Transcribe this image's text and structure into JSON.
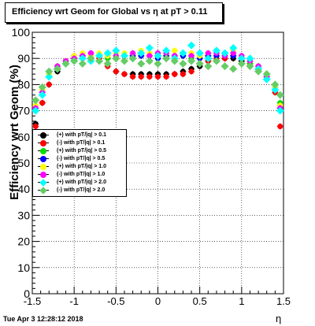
{
  "title": "Efficiency wrt Geom for Global vs  η at pT > 0.11",
  "datestamp": "Tue Apr  3 12:28:12 2018",
  "chart_data": {
    "type": "scatter",
    "xlabel": "η",
    "ylabel": "Efficiency wrt Geom (%)",
    "xlim": [
      -1.5,
      1.5
    ],
    "ylim": [
      0,
      100
    ],
    "xticks": [
      "-1.5",
      "-1",
      "-0.5",
      "0",
      "0.5",
      "1",
      "1.5"
    ],
    "xtick_values": [
      -1.5,
      -1,
      -0.5,
      0,
      0.5,
      1,
      1.5
    ],
    "yticks": [
      "0",
      "10",
      "20",
      "30",
      "40",
      "50",
      "60",
      "70",
      "80",
      "90",
      "100"
    ],
    "ytick_values": [
      0,
      10,
      20,
      30,
      40,
      50,
      60,
      70,
      80,
      90,
      100
    ],
    "grid": true,
    "legend_position": "left-middle",
    "series": [
      {
        "name": "(+) with pT/|q| > 0.1",
        "color": "#000000",
        "x": [
          -1.46,
          -1.38,
          -1.3,
          -1.2,
          -1.1,
          -1.0,
          -0.9,
          -0.8,
          -0.7,
          -0.6,
          -0.5,
          -0.4,
          -0.3,
          -0.2,
          -0.1,
          0.0,
          0.1,
          0.2,
          0.3,
          0.4,
          0.5,
          0.6,
          0.7,
          0.8,
          0.9,
          1.0,
          1.1,
          1.2,
          1.3,
          1.4,
          1.46
        ],
        "y": [
          65,
          73,
          80,
          85,
          89,
          90,
          91,
          92,
          91,
          88,
          85,
          84,
          84,
          84,
          84,
          84,
          84,
          84,
          85,
          86,
          87,
          89,
          89,
          90,
          90,
          89,
          88,
          86,
          83,
          78,
          71
        ]
      },
      {
        "name": "(-) with pT/|q| > 0.1",
        "color": "#ff0000",
        "x": [
          -1.46,
          -1.38,
          -1.3,
          -1.2,
          -1.1,
          -1.0,
          -0.9,
          -0.8,
          -0.7,
          -0.6,
          -0.5,
          -0.4,
          -0.3,
          -0.2,
          -0.1,
          0.0,
          0.1,
          0.2,
          0.3,
          0.4,
          0.5,
          0.6,
          0.7,
          0.8,
          0.9,
          1.0,
          1.1,
          1.2,
          1.3,
          1.4,
          1.46
        ],
        "y": [
          64,
          73,
          80,
          86,
          89,
          90,
          91,
          91,
          90,
          87,
          85,
          84,
          83,
          83,
          83,
          83,
          83,
          84,
          84,
          85,
          88,
          89,
          90,
          90,
          91,
          90,
          88,
          86,
          82,
          77,
          64
        ]
      },
      {
        "name": "(+) with pT/|q| > 0.5",
        "color": "#00dd00",
        "x": [
          -1.46,
          -1.38,
          -1.3,
          -1.2,
          -1.1,
          -1.0,
          -0.9,
          -0.8,
          -0.7,
          -0.6,
          -0.5,
          -0.4,
          -0.3,
          -0.2,
          -0.1,
          0.0,
          0.1,
          0.2,
          0.3,
          0.4,
          0.5,
          0.6,
          0.7,
          0.8,
          0.9,
          1.0,
          1.1,
          1.2,
          1.3,
          1.4,
          1.46
        ],
        "y": [
          72,
          78,
          84,
          87,
          89,
          90,
          91,
          90,
          91,
          90,
          90,
          91,
          91,
          91,
          91,
          90,
          91,
          91,
          91,
          90,
          91,
          91,
          91,
          91,
          92,
          90,
          88,
          87,
          84,
          80,
          73
        ]
      },
      {
        "name": "(-) with pT/|q| > 0.5",
        "color": "#0000ff",
        "x": [
          -1.46,
          -1.38,
          -1.3,
          -1.2,
          -1.1,
          -1.0,
          -0.9,
          -0.8,
          -0.7,
          -0.6,
          -0.5,
          -0.4,
          -0.3,
          -0.2,
          -0.1,
          0.0,
          0.1,
          0.2,
          0.3,
          0.4,
          0.5,
          0.6,
          0.7,
          0.8,
          0.9,
          1.0,
          1.1,
          1.2,
          1.3,
          1.4,
          1.46
        ],
        "y": [
          71,
          77,
          83,
          87,
          89,
          91,
          91,
          91,
          91,
          91,
          90,
          91,
          91,
          91,
          91,
          90,
          91,
          91,
          91,
          91,
          90,
          91,
          91,
          91,
          91,
          90,
          89,
          87,
          83,
          79,
          72
        ]
      },
      {
        "name": "(+) with pT/|q| > 1.0",
        "color": "#ffff00",
        "x": [
          -1.46,
          -1.38,
          -1.3,
          -1.2,
          -1.1,
          -1.0,
          -0.9,
          -0.8,
          -0.7,
          -0.6,
          -0.5,
          -0.4,
          -0.3,
          -0.2,
          -0.1,
          0.0,
          0.1,
          0.2,
          0.3,
          0.4,
          0.5,
          0.6,
          0.7,
          0.8,
          0.9,
          1.0,
          1.1,
          1.2,
          1.3,
          1.4,
          1.46
        ],
        "y": [
          72,
          78,
          84,
          87,
          89,
          91,
          92,
          91,
          92,
          91,
          92,
          92,
          92,
          93,
          92,
          92,
          92,
          93,
          92,
          92,
          91,
          92,
          93,
          92,
          93,
          91,
          89,
          87,
          84,
          79,
          72
        ]
      },
      {
        "name": "(-) with pT/|q| > 1.0",
        "color": "#ff00ff",
        "x": [
          -1.46,
          -1.38,
          -1.3,
          -1.2,
          -1.1,
          -1.0,
          -0.9,
          -0.8,
          -0.7,
          -0.6,
          -0.5,
          -0.4,
          -0.3,
          -0.2,
          -0.1,
          0.0,
          0.1,
          0.2,
          0.3,
          0.4,
          0.5,
          0.6,
          0.7,
          0.8,
          0.9,
          1.0,
          1.1,
          1.2,
          1.3,
          1.4,
          1.46
        ],
        "y": [
          71,
          77,
          83,
          87,
          89,
          90,
          91,
          92,
          91,
          92,
          91,
          91,
          92,
          92,
          91,
          92,
          92,
          91,
          92,
          91,
          92,
          92,
          92,
          91,
          92,
          91,
          89,
          87,
          83,
          78,
          71
        ]
      },
      {
        "name": "(+) with pT/|q| > 2.0",
        "color": "#00ffff",
        "x": [
          -1.46,
          -1.38,
          -1.3,
          -1.2,
          -1.1,
          -1.0,
          -0.9,
          -0.8,
          -0.7,
          -0.6,
          -0.5,
          -0.4,
          -0.3,
          -0.2,
          -0.1,
          0.0,
          0.1,
          0.2,
          0.3,
          0.4,
          0.5,
          0.6,
          0.7,
          0.8,
          0.9,
          1.0,
          1.1,
          1.2,
          1.3,
          1.4,
          1.46
        ],
        "y": [
          70,
          76,
          83,
          86,
          88,
          89,
          90,
          89,
          91,
          92,
          93,
          91,
          90,
          92,
          94,
          91,
          93,
          90,
          92,
          95,
          92,
          90,
          93,
          92,
          94,
          90,
          90,
          86,
          82,
          78,
          70
        ]
      },
      {
        "name": "(-) with pT/|q| > 2.0",
        "color": "#66cc66",
        "x": [
          -1.46,
          -1.38,
          -1.3,
          -1.2,
          -1.1,
          -1.0,
          -0.9,
          -0.8,
          -0.7,
          -0.6,
          -0.5,
          -0.4,
          -0.3,
          -0.2,
          -0.1,
          0.0,
          0.1,
          0.2,
          0.3,
          0.4,
          0.5,
          0.6,
          0.7,
          0.8,
          0.9,
          1.0,
          1.1,
          1.2,
          1.3,
          1.4,
          1.46
        ],
        "y": [
          74,
          79,
          85,
          86,
          88,
          89,
          88,
          90,
          89,
          88,
          90,
          89,
          90,
          88,
          89,
          88,
          90,
          89,
          88,
          89,
          88,
          87,
          89,
          87,
          86,
          88,
          87,
          85,
          84,
          80,
          76
        ]
      }
    ]
  }
}
